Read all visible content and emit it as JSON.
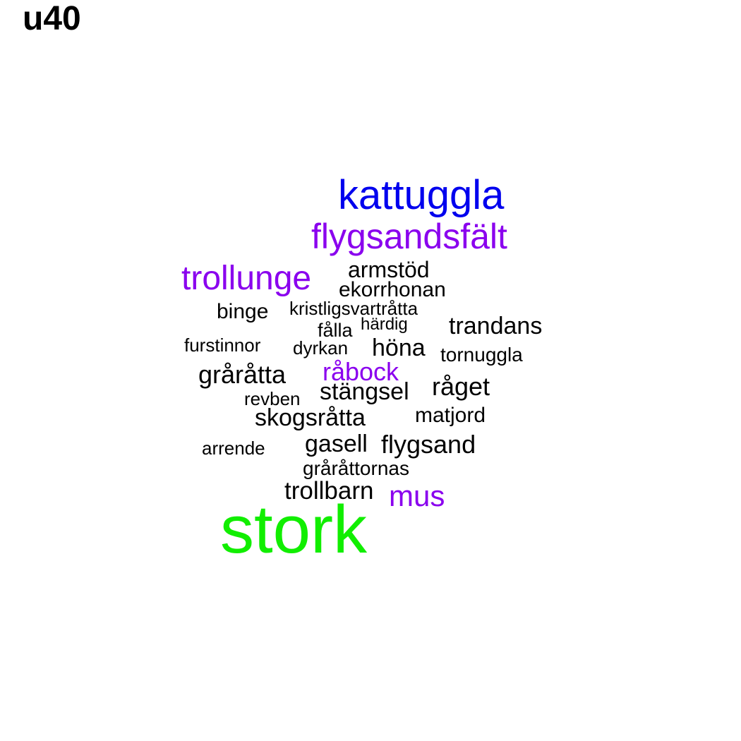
{
  "title": "u40",
  "colors": {
    "blue": "#0000ee",
    "purple": "#8a00ee",
    "green": "#11ee00",
    "black": "#000000"
  },
  "words": [
    {
      "text": "kattuggla",
      "color": "#0000ee"
    },
    {
      "text": "flygsandsfält",
      "color": "#8a00ee"
    },
    {
      "text": "trollunge",
      "color": "#8a00ee"
    },
    {
      "text": "armstöd",
      "color": "#000000"
    },
    {
      "text": "ekorrhonan",
      "color": "#000000"
    },
    {
      "text": "binge",
      "color": "#000000"
    },
    {
      "text": "kristligsvartråtta",
      "color": "#000000"
    },
    {
      "text": "härdig",
      "color": "#000000"
    },
    {
      "text": "trandans",
      "color": "#000000"
    },
    {
      "text": "fålla",
      "color": "#000000"
    },
    {
      "text": "furstinnor",
      "color": "#000000"
    },
    {
      "text": "dyrkan",
      "color": "#000000"
    },
    {
      "text": "höna",
      "color": "#000000"
    },
    {
      "text": "tornuggla",
      "color": "#000000"
    },
    {
      "text": "gråråtta",
      "color": "#000000"
    },
    {
      "text": "råbock",
      "color": "#8a00ee"
    },
    {
      "text": "stängsel",
      "color": "#000000"
    },
    {
      "text": "råget",
      "color": "#000000"
    },
    {
      "text": "revben",
      "color": "#000000"
    },
    {
      "text": "skogsråtta",
      "color": "#000000"
    },
    {
      "text": "matjord",
      "color": "#000000"
    },
    {
      "text": "arrende",
      "color": "#000000"
    },
    {
      "text": "gasell",
      "color": "#000000"
    },
    {
      "text": "flygsand",
      "color": "#000000"
    },
    {
      "text": "gråråttornas",
      "color": "#000000"
    },
    {
      "text": "trollbarn",
      "color": "#000000"
    },
    {
      "text": "mus",
      "color": "#8a00ee"
    },
    {
      "text": "stork",
      "color": "#11ee00"
    }
  ]
}
